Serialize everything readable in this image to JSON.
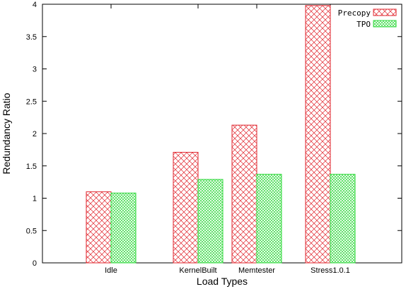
{
  "chart_data": {
    "type": "bar",
    "categories": [
      "Idle",
      "KernelBuilt",
      "Memtester",
      "Stress1.0.1"
    ],
    "series": [
      {
        "name": "Precopy",
        "values": [
          1.1,
          1.71,
          2.13,
          3.98
        ],
        "color": "#e0242c",
        "pattern": "crosshatch"
      },
      {
        "name": "TPO",
        "values": [
          1.08,
          1.29,
          1.37,
          1.37
        ],
        "color": "#2ed83a",
        "pattern": "crosshatch"
      }
    ],
    "xlabel": "Load Types",
    "ylabel": "Redundancy Ratio",
    "ylim": [
      0,
      4
    ],
    "yticks": [
      "0",
      "0.5",
      "1",
      "1.5",
      "2",
      "2.5",
      "3",
      "3.5",
      "4"
    ],
    "grid": false,
    "legend_position": "top-right"
  }
}
